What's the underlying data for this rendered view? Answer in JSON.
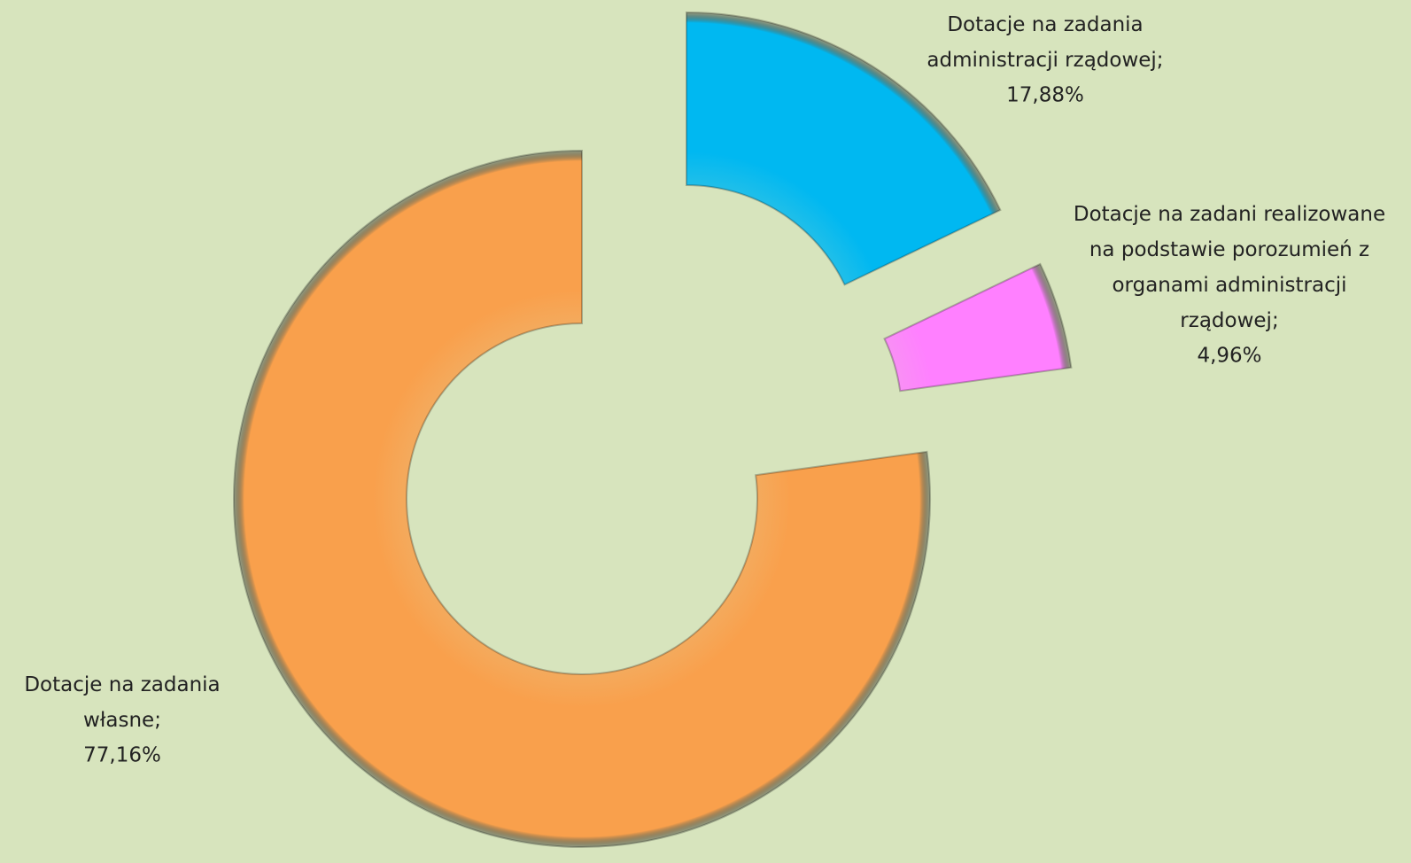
{
  "chart_data": {
    "type": "doughnut",
    "categories": [
      "Dotacje na zadania administracji rządowej;",
      "Dotacje na zadani realizowane na podstawie porozumień z organami administracji rządowej;",
      "Dotacje na zadania własne;"
    ],
    "values": [
      17.88,
      4.96,
      77.16
    ],
    "value_labels": [
      "17,88%",
      "4,96%",
      "77,16%"
    ],
    "colors": [
      "#00b8f1",
      "#ff80ff",
      "#f9a04c"
    ]
  }
}
